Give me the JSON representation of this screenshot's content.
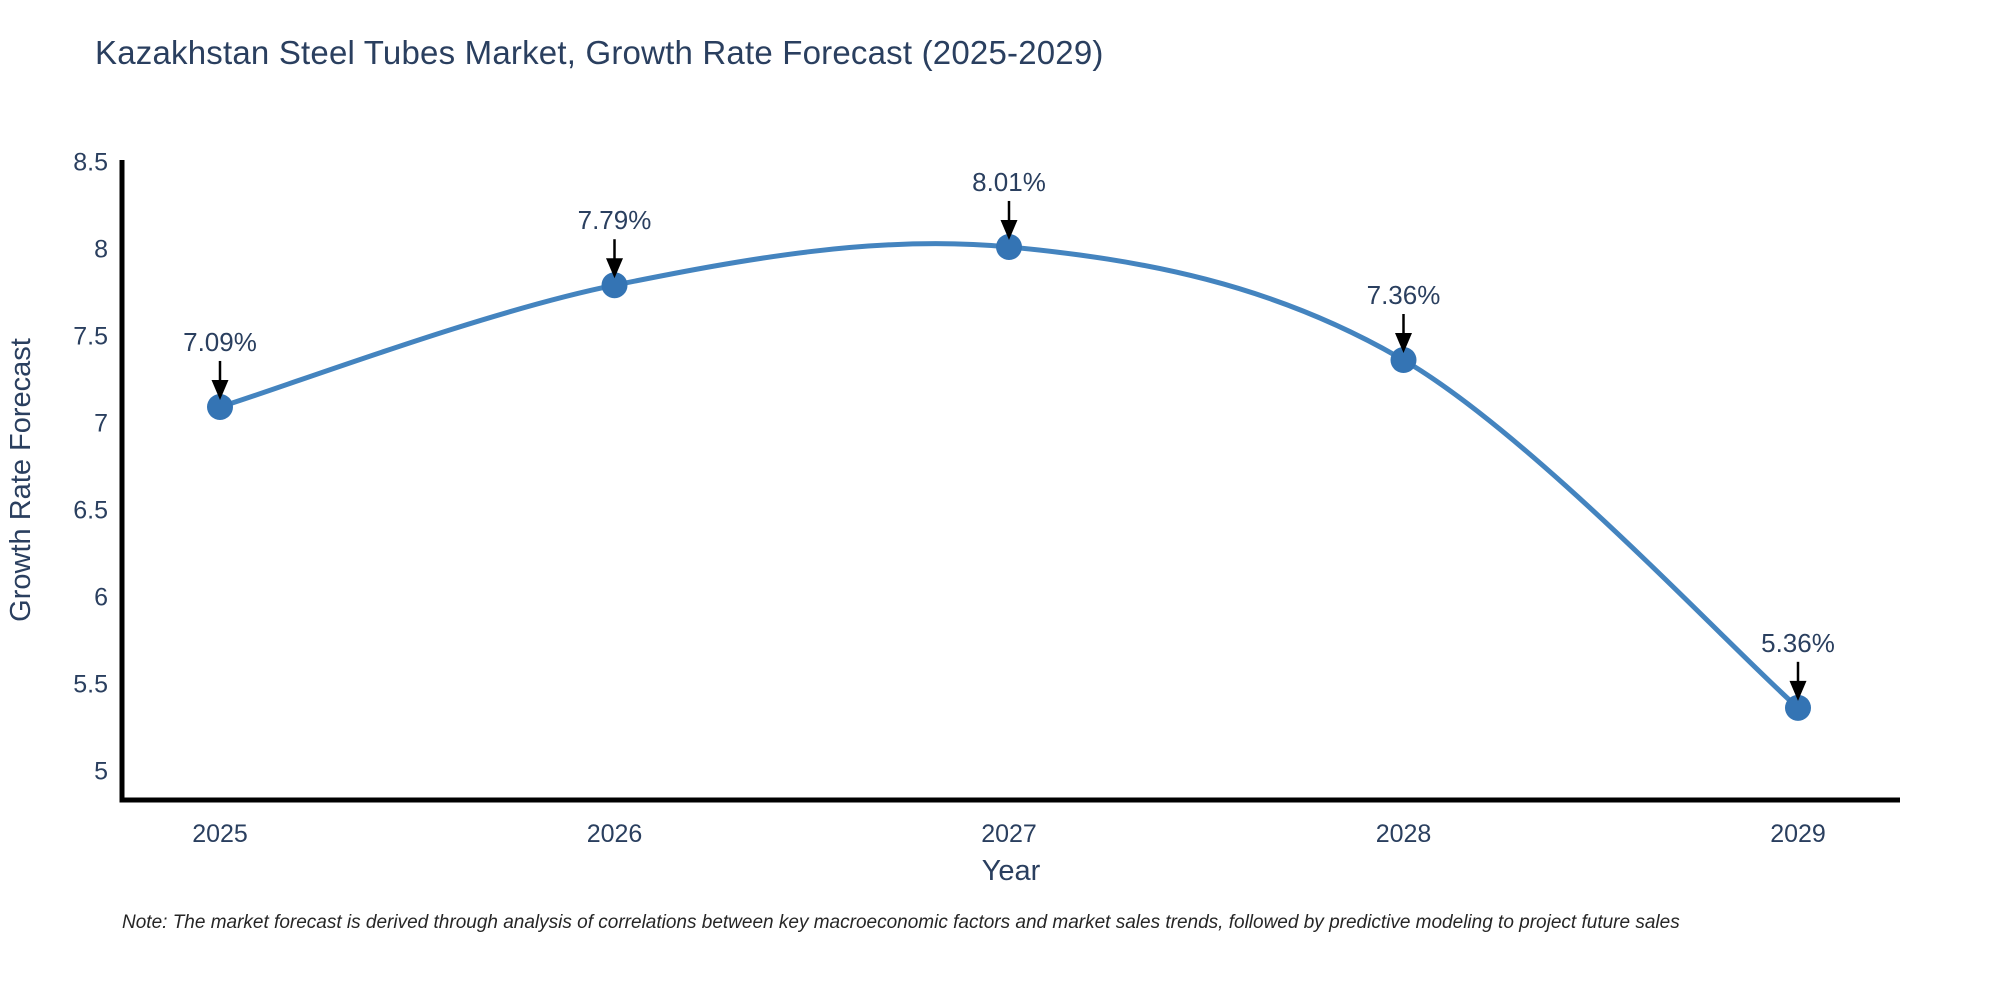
{
  "title": "Kazakhstan Steel Tubes Market, Growth Rate Forecast (2025-2029)",
  "note": "Note: The market forecast is derived through analysis of correlations between key macroeconomic factors and market sales trends, followed by predictive modeling to project future sales",
  "chart_data": {
    "type": "line",
    "title": "Kazakhstan Steel Tubes Market, Growth Rate Forecast (2025-2029)",
    "x": [
      "2025",
      "2026",
      "2027",
      "2028",
      "2029"
    ],
    "series": [
      {
        "name": "Growth Rate Forecast",
        "values": [
          7.09,
          7.79,
          8.01,
          7.36,
          5.36
        ]
      }
    ],
    "point_labels": [
      "7.09%",
      "7.79%",
      "8.01%",
      "7.36%",
      "5.36%"
    ],
    "xlabel": "Year",
    "ylabel": "Growth Rate Forecast",
    "ylim": [
      4.83,
      8.51
    ],
    "yticks": [
      8.5,
      8,
      7.5,
      7,
      6.5,
      6,
      5.5,
      5
    ],
    "grid": false,
    "legend": "none",
    "line_shape": "spline",
    "annotations_have_arrows": true,
    "colors": {
      "line": "#4484bf",
      "marker": "#3474b4",
      "axis": "#000000",
      "text": "#2a3f5f",
      "annotation_text": "#2a3f5f",
      "annotation_arrow": "#000000",
      "note_text": "#262626",
      "background": "#ffffff"
    }
  }
}
